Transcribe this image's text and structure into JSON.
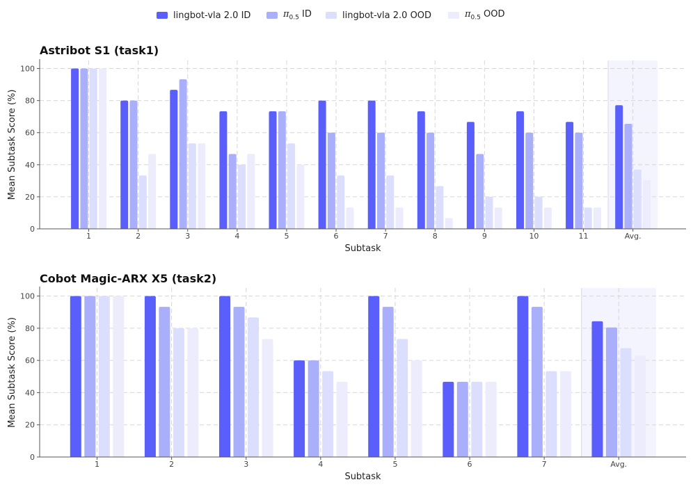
{
  "legend": [
    {
      "label": "lingbot-vla 2.0 ID",
      "color": "#5a5ffb"
    },
    {
      "label": "π0.5 ID",
      "color": "#aaaffc"
    },
    {
      "label": "lingbot-vla 2.0 OOD",
      "color": "#dcdefd"
    },
    {
      "label": "π0.5 OOD",
      "color": "#ececfd"
    }
  ],
  "chart_data": [
    {
      "type": "bar",
      "title": "Astribot S1 (task1)",
      "xlabel": "Subtask",
      "ylabel": "Mean Subtask Score (%)",
      "ylim": [
        0,
        105
      ],
      "yticks": [
        0,
        20,
        40,
        60,
        80,
        100
      ],
      "grid": true,
      "legend_placement": "top-center",
      "highlight_category": "Avg.",
      "categories": [
        "1",
        "2",
        "3",
        "4",
        "5",
        "6",
        "7",
        "8",
        "9",
        "10",
        "11",
        "Avg."
      ],
      "series": [
        {
          "name": "lingbot-vla 2.0 ID",
          "values": [
            100,
            80,
            86.7,
            73.3,
            73.3,
            80,
            80,
            73.3,
            66.7,
            73.3,
            66.7,
            77.1
          ]
        },
        {
          "name": "π0.5 ID",
          "values": [
            100,
            80,
            93.3,
            46.7,
            73.3,
            60,
            60,
            60,
            46.7,
            60,
            60,
            65.5
          ]
        },
        {
          "name": "lingbot-vla 2.0 OOD",
          "values": [
            100,
            33.3,
            53.3,
            40,
            53.3,
            33.3,
            33.3,
            26.7,
            20,
            20,
            13.3,
            37.0
          ]
        },
        {
          "name": "π0.5 OOD",
          "values": [
            100,
            46.7,
            53.3,
            46.7,
            40,
            13.3,
            13.3,
            6.7,
            13.3,
            13.3,
            13.3,
            30.3
          ]
        }
      ]
    },
    {
      "type": "bar",
      "title": "Cobot Magic-ARX X5 (task2)",
      "xlabel": "Subtask",
      "ylabel": "Mean Subtask Score (%)",
      "ylim": [
        0,
        105
      ],
      "yticks": [
        0,
        20,
        40,
        60,
        80,
        100
      ],
      "grid": true,
      "highlight_category": "Avg.",
      "categories": [
        "1",
        "2",
        "3",
        "4",
        "5",
        "6",
        "7",
        "Avg."
      ],
      "series": [
        {
          "name": "lingbot-vla 2.0 ID",
          "values": [
            100,
            100,
            100,
            60,
            100,
            46.7,
            100,
            84.3
          ]
        },
        {
          "name": "π0.5 ID",
          "values": [
            100,
            93.3,
            93.3,
            60,
            93.3,
            46.7,
            93.3,
            80.5
          ]
        },
        {
          "name": "lingbot-vla 2.0 OOD",
          "values": [
            100,
            80,
            86.7,
            53.3,
            73.3,
            46.7,
            53.3,
            67.6
          ]
        },
        {
          "name": "π0.5 OOD",
          "values": [
            100,
            80,
            73.3,
            46.7,
            60,
            46.7,
            53.3,
            62.9
          ]
        }
      ]
    }
  ]
}
